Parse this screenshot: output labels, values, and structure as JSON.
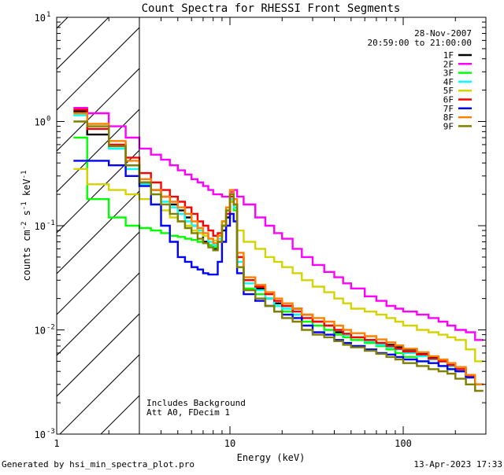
{
  "chart_data": {
    "type": "line",
    "title": "Count Spectra for RHESSI Front Segments",
    "xlabel": "Energy (keV)",
    "ylabel_parts": [
      "counts cm",
      "-2",
      " s",
      "-1",
      " keV",
      "-1"
    ],
    "xscale": "log",
    "yscale": "log",
    "xlim": [
      1,
      300
    ],
    "ylim": [
      0.001,
      10
    ],
    "x_ticks": [
      {
        "value": 1,
        "label": "1"
      },
      {
        "value": 10,
        "label": "10"
      },
      {
        "value": 100,
        "label": "100"
      }
    ],
    "y_ticks": [
      {
        "value": 0.001,
        "base": "10",
        "exp": "-3"
      },
      {
        "value": 0.01,
        "base": "10",
        "exp": "-2"
      },
      {
        "value": 0.1,
        "base": "10",
        "exp": "-1"
      },
      {
        "value": 1,
        "base": "10",
        "exp": "0"
      },
      {
        "value": 10,
        "base": "10",
        "exp": "1"
      }
    ],
    "date": "28-Nov-2007",
    "time_range": "20:59:00 to 21:00:00",
    "annotations": [
      "Includes Background",
      "Att A0, FDecim 1"
    ],
    "shaded_region_kev": [
      1,
      3
    ],
    "energy_edges": [
      1.25,
      1.5,
      2.0,
      2.5,
      3.0,
      3.5,
      4.0,
      4.5,
      5.0,
      5.5,
      6.0,
      6.5,
      7.0,
      7.5,
      8.0,
      8.5,
      9.0,
      9.5,
      10.0,
      10.5,
      11.0,
      12,
      14,
      16,
      18,
      20,
      23,
      26,
      30,
      35,
      40,
      45,
      50,
      60,
      70,
      80,
      90,
      100,
      120,
      140,
      160,
      180,
      200,
      230,
      260,
      290
    ],
    "series": [
      {
        "name": "1F",
        "color": "#000000",
        "values": [
          1.25,
          0.75,
          0.55,
          0.38,
          0.26,
          0.22,
          0.19,
          0.16,
          0.14,
          0.12,
          0.1,
          0.085,
          0.07,
          0.065,
          0.06,
          0.07,
          0.09,
          0.12,
          0.17,
          0.15,
          0.05,
          0.03,
          0.025,
          0.02,
          0.018,
          0.017,
          0.016,
          0.014,
          0.012,
          0.011,
          0.0095,
          0.009,
          0.0085,
          0.008,
          0.0075,
          0.0072,
          0.0068,
          0.0065,
          0.006,
          0.0055,
          0.005,
          0.0045,
          0.0042,
          0.0035,
          0.003
        ]
      },
      {
        "name": "2F",
        "color": "#ff00ff",
        "values": [
          1.35,
          1.2,
          0.9,
          0.7,
          0.55,
          0.48,
          0.43,
          0.38,
          0.34,
          0.31,
          0.28,
          0.26,
          0.24,
          0.22,
          0.2,
          0.2,
          0.19,
          0.19,
          0.21,
          0.22,
          0.19,
          0.16,
          0.12,
          0.1,
          0.085,
          0.075,
          0.06,
          0.05,
          0.042,
          0.036,
          0.032,
          0.028,
          0.025,
          0.021,
          0.019,
          0.017,
          0.016,
          0.015,
          0.014,
          0.013,
          0.012,
          0.011,
          0.01,
          0.0095,
          0.008
        ]
      },
      {
        "name": "3F",
        "color": "#00ff00",
        "values": [
          0.7,
          0.18,
          0.12,
          0.1,
          0.095,
          0.09,
          0.085,
          0.08,
          0.078,
          0.075,
          0.073,
          0.07,
          0.068,
          0.065,
          0.062,
          0.08,
          0.11,
          0.14,
          0.18,
          0.14,
          0.04,
          0.025,
          0.022,
          0.02,
          0.017,
          0.015,
          0.014,
          0.012,
          0.011,
          0.01,
          0.009,
          0.0085,
          0.008,
          0.0075,
          0.007,
          0.0065,
          0.006,
          0.0055,
          0.005,
          0.0048,
          0.0045,
          0.0042,
          0.004,
          0.0035,
          0.003
        ]
      },
      {
        "name": "4F",
        "color": "#00ffff",
        "values": [
          1.15,
          0.85,
          0.55,
          0.35,
          0.25,
          0.2,
          0.17,
          0.15,
          0.13,
          0.11,
          0.1,
          0.09,
          0.08,
          0.07,
          0.065,
          0.075,
          0.1,
          0.13,
          0.18,
          0.15,
          0.045,
          0.028,
          0.024,
          0.02,
          0.017,
          0.016,
          0.014,
          0.013,
          0.012,
          0.011,
          0.01,
          0.009,
          0.0085,
          0.0078,
          0.0072,
          0.0068,
          0.0065,
          0.006,
          0.0056,
          0.0052,
          0.005,
          0.0045,
          0.0042,
          0.0035,
          0.003
        ]
      },
      {
        "name": "5F",
        "color": "#d4d400",
        "values": [
          0.35,
          0.25,
          0.22,
          0.2,
          0.18,
          0.16,
          0.14,
          0.12,
          0.11,
          0.1,
          0.09,
          0.085,
          0.08,
          0.075,
          0.072,
          0.08,
          0.1,
          0.13,
          0.17,
          0.16,
          0.09,
          0.07,
          0.06,
          0.05,
          0.045,
          0.04,
          0.035,
          0.03,
          0.026,
          0.023,
          0.02,
          0.018,
          0.016,
          0.015,
          0.014,
          0.013,
          0.012,
          0.011,
          0.01,
          0.0095,
          0.009,
          0.0085,
          0.008,
          0.0065,
          0.005
        ]
      },
      {
        "name": "6F",
        "color": "#ff0000",
        "values": [
          1.3,
          0.85,
          0.6,
          0.45,
          0.32,
          0.26,
          0.22,
          0.19,
          0.17,
          0.15,
          0.13,
          0.11,
          0.1,
          0.09,
          0.08,
          0.085,
          0.1,
          0.13,
          0.19,
          0.16,
          0.05,
          0.03,
          0.026,
          0.022,
          0.019,
          0.017,
          0.015,
          0.013,
          0.012,
          0.011,
          0.01,
          0.0092,
          0.0085,
          0.008,
          0.0075,
          0.007,
          0.0066,
          0.0062,
          0.0058,
          0.0053,
          0.005,
          0.0046,
          0.0042,
          0.0036,
          0.003
        ]
      },
      {
        "name": "7F",
        "color": "#0000ff",
        "values": [
          0.42,
          0.42,
          0.38,
          0.3,
          0.24,
          0.16,
          0.1,
          0.07,
          0.05,
          0.045,
          0.04,
          0.038,
          0.035,
          0.034,
          0.034,
          0.045,
          0.07,
          0.1,
          0.13,
          0.11,
          0.035,
          0.022,
          0.019,
          0.017,
          0.015,
          0.014,
          0.013,
          0.011,
          0.0095,
          0.009,
          0.008,
          0.0075,
          0.007,
          0.0065,
          0.006,
          0.0058,
          0.0055,
          0.0052,
          0.005,
          0.0048,
          0.0045,
          0.0042,
          0.004,
          0.0035,
          0.003
        ]
      },
      {
        "name": "8F",
        "color": "#ff8000",
        "values": [
          1.2,
          0.95,
          0.65,
          0.42,
          0.28,
          0.22,
          0.19,
          0.17,
          0.15,
          0.13,
          0.11,
          0.095,
          0.085,
          0.075,
          0.068,
          0.08,
          0.11,
          0.15,
          0.22,
          0.18,
          0.055,
          0.032,
          0.027,
          0.023,
          0.02,
          0.018,
          0.016,
          0.014,
          0.013,
          0.012,
          0.011,
          0.01,
          0.0093,
          0.0087,
          0.0081,
          0.0076,
          0.0071,
          0.0066,
          0.0061,
          0.0056,
          0.0052,
          0.0048,
          0.0044,
          0.0037,
          0.003
        ]
      },
      {
        "name": "9F",
        "color": "#808000",
        "values": [
          1.0,
          0.9,
          0.58,
          0.38,
          0.26,
          0.2,
          0.16,
          0.13,
          0.11,
          0.095,
          0.085,
          0.075,
          0.068,
          0.062,
          0.058,
          0.07,
          0.1,
          0.14,
          0.2,
          0.16,
          0.04,
          0.024,
          0.02,
          0.017,
          0.015,
          0.013,
          0.012,
          0.01,
          0.009,
          0.0085,
          0.0078,
          0.0072,
          0.0068,
          0.0063,
          0.0059,
          0.0055,
          0.0052,
          0.0048,
          0.0045,
          0.0042,
          0.004,
          0.0038,
          0.0034,
          0.003,
          0.0026
        ]
      }
    ]
  },
  "footer": {
    "generator": "Generated by hsi_min_spectra_plot.pro",
    "timestamp": "13-Apr-2023 17:33"
  }
}
